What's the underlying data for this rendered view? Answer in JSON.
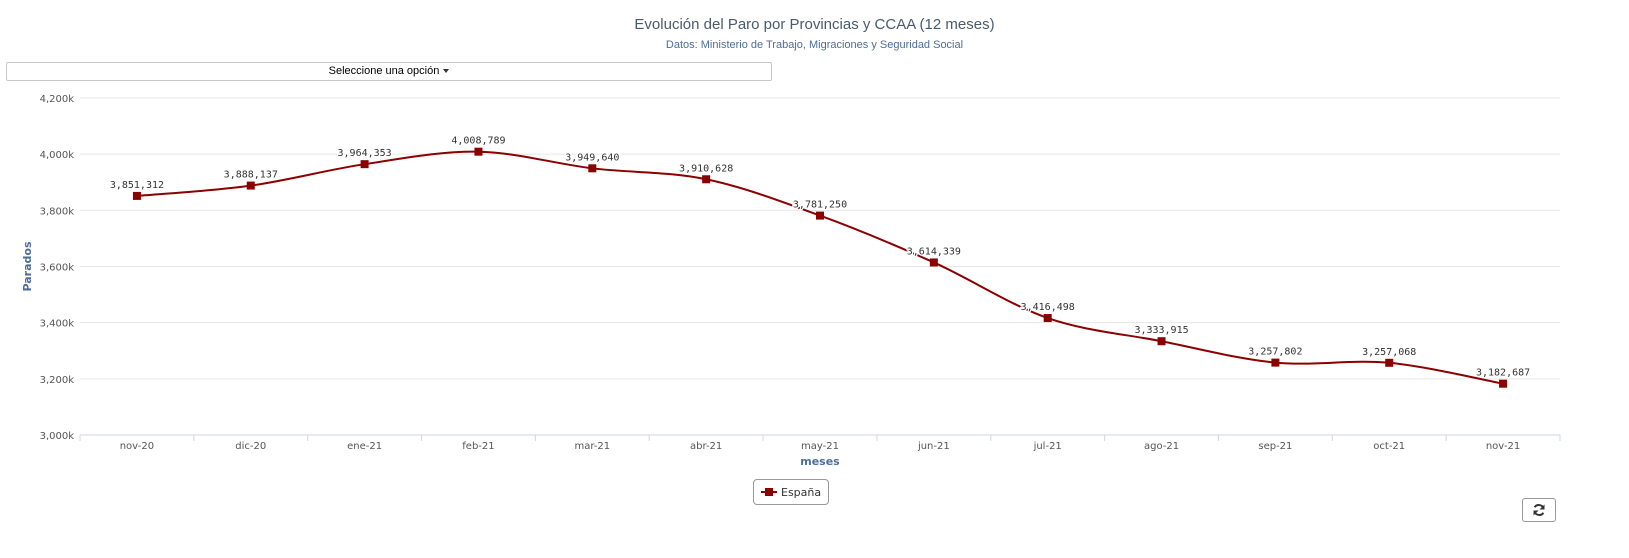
{
  "header": {
    "title": "Evolución del Paro por Provincias y CCAA (12 meses)",
    "subtitle": "Datos: Ministerio de Trabajo, Migraciones y Seguridad Social"
  },
  "selector": {
    "label": "Seleccione una opción"
  },
  "legend": {
    "label": "España"
  },
  "colors": {
    "series": "#8b0000",
    "grid": "#e6e6e6",
    "axis_title": "#4d6d99"
  },
  "icons": {
    "refresh": "refresh-icon",
    "caret": "caret-down-icon"
  },
  "chart_data": {
    "type": "line",
    "xlabel": "meses",
    "ylabel": "Parados",
    "categories": [
      "nov-20",
      "dic-20",
      "ene-21",
      "feb-21",
      "mar-21",
      "abr-21",
      "may-21",
      "jun-21",
      "jul-21",
      "ago-21",
      "sep-21",
      "oct-21",
      "nov-21"
    ],
    "yticks": [
      "3,000k",
      "3,200k",
      "3,400k",
      "3,600k",
      "3,800k",
      "4,000k",
      "4,200k"
    ],
    "ylim": [
      3000000,
      4200000
    ],
    "grid": true,
    "legend_position": "bottom",
    "series": [
      {
        "name": "España",
        "values": [
          3851312,
          3888137,
          3964353,
          4008789,
          3949640,
          3910628,
          3781250,
          3614339,
          3416498,
          3333915,
          3257802,
          3257068,
          3182687
        ],
        "labels": [
          "3,851,312",
          "3,888,137",
          "3,964,353",
          "4,008,789",
          "3,949,640",
          "3,910,628",
          "3,781,250",
          "3,614,339",
          "3,416,498",
          "3,333,915",
          "3,257,802",
          "3,257,068",
          "3,182,687"
        ]
      }
    ]
  }
}
